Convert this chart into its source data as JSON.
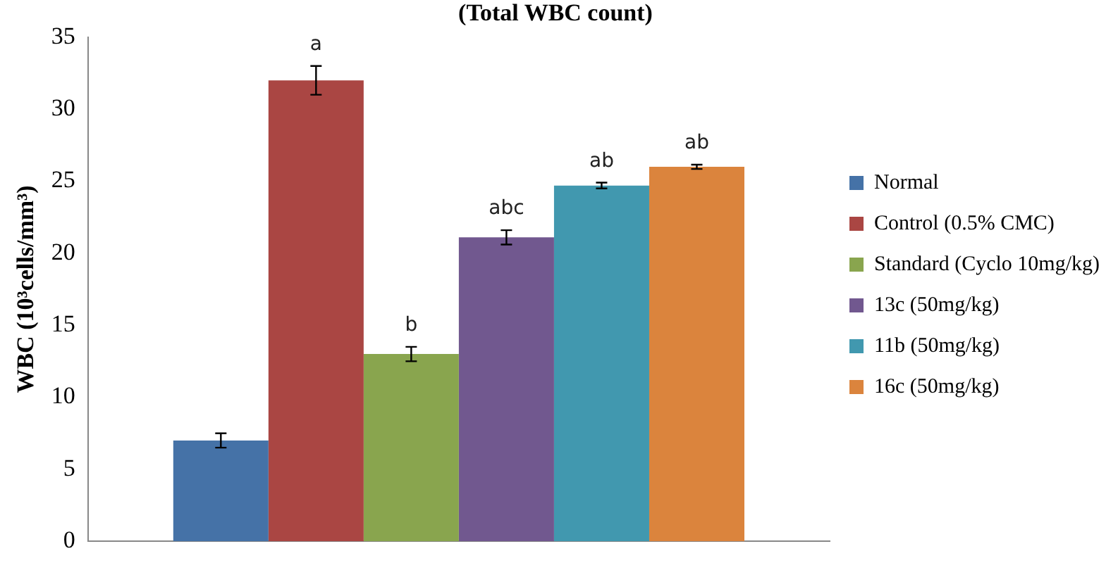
{
  "chart_data": {
    "type": "bar",
    "title": "(Total WBC count)",
    "ylabel": "WBC (10³cells/mm³)",
    "categories": [
      null
    ],
    "series": [
      {
        "name": "Normal",
        "color": "#4572a7",
        "values": [
          7
        ],
        "errors": [
          0.5
        ],
        "value_labels": [
          null
        ]
      },
      {
        "name": "Control (0.5% CMC)",
        "color": "#aa4643",
        "values": [
          32
        ],
        "errors": [
          1
        ],
        "value_labels": [
          "a"
        ]
      },
      {
        "name": "Standard (Cyclo 10mg/kg)",
        "color": "#89a54e",
        "values": [
          13
        ],
        "errors": [
          0.5
        ],
        "value_labels": [
          "b"
        ]
      },
      {
        "name": "13c (50mg/kg)",
        "color": "#71588f",
        "values": [
          21.1
        ],
        "errors": [
          0.5
        ],
        "value_labels": [
          "abc"
        ]
      },
      {
        "name": "11b (50mg/kg)",
        "color": "#4198af",
        "values": [
          24.7
        ],
        "errors": [
          0.2
        ],
        "value_labels": [
          "ab"
        ]
      },
      {
        "name": "16c (50mg/kg)",
        "color": "#db843d",
        "values": [
          26
        ],
        "errors": [
          0.15
        ],
        "value_labels": [
          "ab"
        ]
      }
    ],
    "ylim": [
      0,
      35
    ],
    "yticks": [
      0,
      5,
      10,
      15,
      20,
      25,
      30,
      35
    ],
    "grid": false,
    "legend": "right"
  }
}
